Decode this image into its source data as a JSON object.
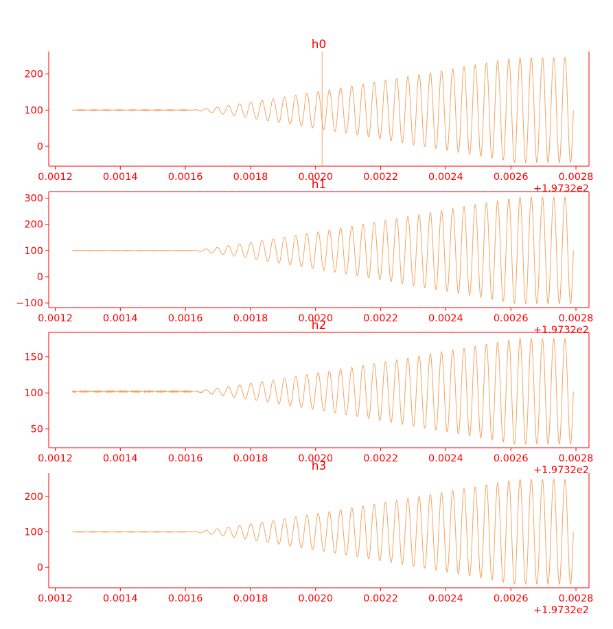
{
  "figure": {
    "offset_label": "+1.9732e2",
    "text_color": "#ff0000",
    "line_color": "#f4a460",
    "background": "#ffffff"
  },
  "chart_data": [
    {
      "type": "line",
      "title": "h0",
      "xlim": [
        0.00118,
        0.00284
      ],
      "ylim": [
        -55,
        262
      ],
      "xticks": [
        0.0012,
        0.0014,
        0.0016,
        0.0018,
        0.002,
        0.0022,
        0.0024,
        0.0026,
        0.0028
      ],
      "xtick_labels": [
        "0.0012",
        "0.0014",
        "0.0016",
        "0.0018",
        "0.0020",
        "0.0022",
        "0.0024",
        "0.0026",
        "0.0028"
      ],
      "yticks": [
        0,
        100,
        200
      ],
      "ytick_labels": [
        "0",
        "100",
        "200"
      ],
      "x_offset": "+1.9732e2",
      "vline_x": 0.00202,
      "signal": {
        "t_start": 0.001252,
        "t_end": 0.002792,
        "chirp_start": 0.00162,
        "baseline": 100,
        "max_amplitude": 145,
        "cycles": 34,
        "noise_amplitude": 1.5
      }
    },
    {
      "type": "line",
      "title": "h1",
      "xlim": [
        0.00118,
        0.00284
      ],
      "ylim": [
        -118,
        325
      ],
      "xticks": [
        0.0012,
        0.0014,
        0.0016,
        0.0018,
        0.002,
        0.0022,
        0.0024,
        0.0026,
        0.0028
      ],
      "xtick_labels": [
        "0.0012",
        "0.0014",
        "0.0016",
        "0.0018",
        "0.0020",
        "0.0022",
        "0.0024",
        "0.0026",
        "0.0028"
      ],
      "yticks": [
        -100,
        0,
        100,
        200,
        300
      ],
      "ytick_labels": [
        "−100",
        "0",
        "100",
        "200",
        "300"
      ],
      "x_offset": "+1.9732e2",
      "signal": {
        "t_start": 0.001252,
        "t_end": 0.002792,
        "chirp_start": 0.00162,
        "baseline": 100,
        "max_amplitude": 203,
        "cycles": 34,
        "noise_amplitude": 1.0
      }
    },
    {
      "type": "line",
      "title": "h2",
      "xlim": [
        0.00118,
        0.00284
      ],
      "ylim": [
        24,
        184
      ],
      "xticks": [
        0.0012,
        0.0014,
        0.0016,
        0.0018,
        0.002,
        0.0022,
        0.0024,
        0.0026,
        0.0028
      ],
      "xtick_labels": [
        "0.0012",
        "0.0014",
        "0.0016",
        "0.0018",
        "0.0020",
        "0.0022",
        "0.0024",
        "0.0026",
        "0.0028"
      ],
      "yticks": [
        50,
        100,
        150
      ],
      "ytick_labels": [
        "50",
        "100",
        "150"
      ],
      "x_offset": "+1.9732e2",
      "signal": {
        "t_start": 0.001252,
        "t_end": 0.002792,
        "chirp_start": 0.00162,
        "baseline": 102,
        "max_amplitude": 73,
        "cycles": 34,
        "noise_amplitude": 1.5
      }
    },
    {
      "type": "line",
      "title": "h3",
      "xlim": [
        0.00118,
        0.00284
      ],
      "ylim": [
        -58,
        266
      ],
      "xticks": [
        0.0012,
        0.0014,
        0.0016,
        0.0018,
        0.002,
        0.0022,
        0.0024,
        0.0026,
        0.0028
      ],
      "xtick_labels": [
        "0.0012",
        "0.0014",
        "0.0016",
        "0.0018",
        "0.0020",
        "0.0022",
        "0.0024",
        "0.0026",
        "0.0028"
      ],
      "yticks": [
        0,
        100,
        200
      ],
      "ytick_labels": [
        "0",
        "100",
        "200"
      ],
      "x_offset": "+1.9732e2",
      "signal": {
        "t_start": 0.001252,
        "t_end": 0.002792,
        "chirp_start": 0.00162,
        "baseline": 100,
        "max_amplitude": 148,
        "cycles": 34,
        "noise_amplitude": 1.0
      }
    }
  ]
}
